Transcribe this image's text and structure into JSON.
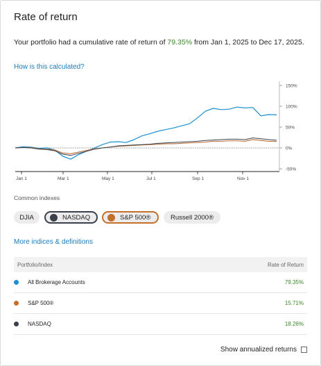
{
  "header": {
    "title": "Rate of return"
  },
  "summary": {
    "prefix": "Your portfolio had a cumulative rate of return of ",
    "pct": "79.35%",
    "suffix": " from Jan 1, 2025 to Dec 17, 2025."
  },
  "links": {
    "how": "How is this calculated?",
    "more": "More indices & definitions"
  },
  "chart_data": {
    "type": "line",
    "x_ticks": [
      "Jan 1",
      "Mar 1",
      "May 1",
      "Jul 1",
      "Sep 1",
      "Nov 1"
    ],
    "y_ticks": [
      "150%",
      "100%",
      "50%",
      "0%",
      "-50%"
    ],
    "ylim": [
      -50,
      150
    ],
    "series": [
      {
        "name": "All Brokerage Accounts",
        "color": "#1a8fcf",
        "values": [
          0,
          3,
          2,
          -1,
          0,
          -5,
          -20,
          -27,
          -16,
          -8,
          0,
          8,
          14,
          15,
          13,
          20,
          29,
          34,
          40,
          44,
          48,
          53,
          58,
          72,
          88,
          95,
          92,
          93,
          98,
          96,
          97,
          77,
          80,
          79.35
        ]
      },
      {
        "name": "S&P 500®",
        "color": "#b5632a",
        "values": [
          0,
          1,
          1,
          -2,
          -3,
          -5,
          -12,
          -14,
          -10,
          -6,
          -2,
          0,
          2,
          4,
          5,
          6,
          7,
          8,
          9,
          10,
          10,
          11,
          12,
          13,
          14,
          16,
          16,
          17,
          17,
          16,
          20,
          18,
          16,
          15.71
        ]
      },
      {
        "name": "NASDAQ",
        "color": "#3a414a",
        "values": [
          0,
          1,
          0,
          -3,
          -4,
          -7,
          -15,
          -18,
          -13,
          -8,
          -3,
          0,
          2,
          5,
          6,
          7,
          8,
          9,
          11,
          12,
          13,
          14,
          15,
          16,
          18,
          19,
          20,
          21,
          21,
          20,
          24,
          22,
          20,
          18.26
        ]
      }
    ]
  },
  "indexes": {
    "label": "Common indexes",
    "pills": [
      {
        "label": "DJIA",
        "selected": false,
        "color": ""
      },
      {
        "label": "NASDAQ",
        "selected": true,
        "color": "#3a414a"
      },
      {
        "label": "S&P 500®",
        "selected": true,
        "color": "#c46f2a"
      },
      {
        "label": "Russell 2000®",
        "selected": false,
        "color": ""
      }
    ]
  },
  "table": {
    "col_left": "Portfolio/Index",
    "col_right": "Rate of Return",
    "rows": [
      {
        "name": "All Brokerage Accounts",
        "value": "79.35%",
        "color": "#1a8fcf"
      },
      {
        "name": "S&P 500®",
        "value": "15.71%",
        "color": "#c46f2a"
      },
      {
        "name": "NASDAQ",
        "value": "18.26%",
        "color": "#3a414a"
      }
    ]
  },
  "footer": {
    "annualized_label": "Show annualized returns"
  }
}
